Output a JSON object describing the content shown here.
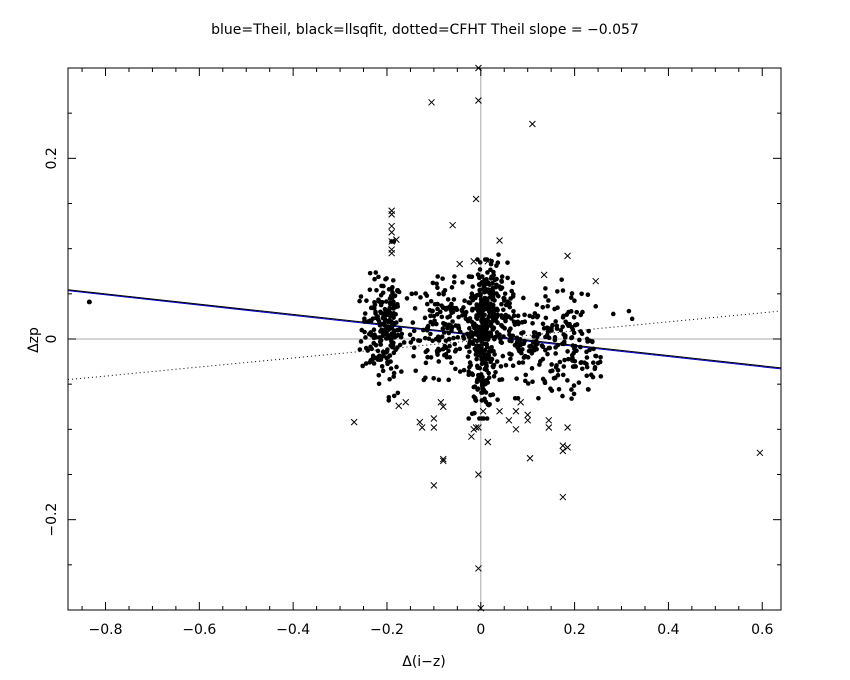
{
  "chart_data": {
    "type": "scatter",
    "title": "blue=Theil, black=llsqfit, dotted=CFHT   Theil slope = −0.057",
    "xlabel": "Δ(i−z)",
    "ylabel": "Δzp",
    "xlim": [
      -0.88,
      0.64
    ],
    "ylim": [
      -0.3,
      0.3
    ],
    "x_ticks": [
      -0.8,
      -0.6,
      -0.4,
      -0.2,
      0,
      0.2,
      0.4,
      0.6
    ],
    "x_tick_labels": [
      "−0.8",
      "−0.6",
      "−0.4",
      "−0.2",
      "0",
      "0.2",
      "0.4",
      "0.6"
    ],
    "y_ticks": [
      -0.2,
      0,
      0.2
    ],
    "y_tick_labels": [
      "−0.2",
      "0",
      "0.2"
    ],
    "grid": false,
    "zero_lines": true,
    "colors": {
      "points": "#000000",
      "theil": "#0000cc",
      "llsqfit": "#000000",
      "cfht": "#000000",
      "zero_line": "#aaaaaa"
    },
    "lines": [
      {
        "style": "solid",
        "color": "#0000cc",
        "x": [
          -0.88,
          0.64
        ],
        "y": [
          0.0535,
          -0.0331
        ]
      },
      {
        "style": "solid",
        "color": "#000000",
        "x": [
          -0.88,
          0.64
        ],
        "y": [
          0.0545,
          -0.032
        ]
      },
      {
        "style": "dotted",
        "color": "#000000",
        "x": [
          -0.88,
          0.64
        ],
        "y": [
          -0.045,
          0.031
        ]
      }
    ],
    "outliers": [
      [
        -0.27,
        -0.092
      ],
      [
        -0.19,
        0.142
      ],
      [
        -0.19,
        0.138
      ],
      [
        -0.19,
        0.125
      ],
      [
        -0.19,
        0.118
      ],
      [
        -0.19,
        0.108
      ],
      [
        -0.18,
        0.11
      ],
      [
        -0.19,
        0.099
      ],
      [
        -0.19,
        0.095
      ],
      [
        -0.175,
        -0.074
      ],
      [
        -0.16,
        -0.07
      ],
      [
        -0.13,
        -0.092
      ],
      [
        -0.125,
        -0.098
      ],
      [
        -0.105,
        0.262
      ],
      [
        -0.1,
        -0.088
      ],
      [
        -0.1,
        -0.098
      ],
      [
        -0.1,
        -0.162
      ],
      [
        -0.085,
        -0.07
      ],
      [
        -0.08,
        -0.075
      ],
      [
        -0.08,
        -0.133
      ],
      [
        -0.08,
        -0.135
      ],
      [
        -0.06,
        0.126
      ],
      [
        -0.045,
        0.083
      ],
      [
        -0.02,
        -0.108
      ],
      [
        -0.015,
        0.086
      ],
      [
        -0.015,
        -0.1
      ],
      [
        -0.01,
        0.155
      ],
      [
        -0.01,
        -0.098
      ],
      [
        -0.005,
        0.264
      ],
      [
        -0.005,
        0.3
      ],
      [
        -0.005,
        -0.098
      ],
      [
        -0.005,
        -0.15
      ],
      [
        -0.005,
        -0.254
      ],
      [
        0.0,
        -0.298
      ],
      [
        0.005,
        -0.08
      ],
      [
        0.015,
        0.086
      ],
      [
        0.015,
        -0.114
      ],
      [
        0.04,
        0.109
      ],
      [
        0.04,
        -0.08
      ],
      [
        0.06,
        -0.09
      ],
      [
        0.075,
        -0.08
      ],
      [
        0.075,
        -0.1
      ],
      [
        0.085,
        -0.07
      ],
      [
        0.1,
        -0.09
      ],
      [
        0.1,
        -0.084
      ],
      [
        0.105,
        -0.132
      ],
      [
        0.11,
        0.238
      ],
      [
        0.135,
        0.071
      ],
      [
        0.145,
        -0.098
      ],
      [
        0.145,
        -0.09
      ],
      [
        0.175,
        -0.118
      ],
      [
        0.175,
        -0.124
      ],
      [
        0.175,
        -0.175
      ],
      [
        0.185,
        0.092
      ],
      [
        0.185,
        -0.098
      ],
      [
        0.185,
        -0.12
      ],
      [
        0.245,
        0.064
      ],
      [
        0.595,
        -0.126
      ]
    ],
    "clusters": [
      {
        "cx": -0.835,
        "cy": 0.041,
        "sx": 0.0,
        "sy": 0.0,
        "n": 2
      },
      {
        "cx": -0.21,
        "cy": 0.012,
        "sx": 0.022,
        "sy": 0.028,
        "n": 170
      },
      {
        "cx": -0.19,
        "cy": 0.02,
        "sx": 0.006,
        "sy": 0.04,
        "n": 40
      },
      {
        "cx": -0.07,
        "cy": 0.012,
        "sx": 0.05,
        "sy": 0.026,
        "n": 200
      },
      {
        "cx": 0.005,
        "cy": 0.0,
        "sx": 0.014,
        "sy": 0.04,
        "n": 260
      },
      {
        "cx": 0.025,
        "cy": 0.045,
        "sx": 0.02,
        "sy": 0.022,
        "n": 90
      },
      {
        "cx": 0.1,
        "cy": -0.004,
        "sx": 0.045,
        "sy": 0.028,
        "n": 170
      },
      {
        "cx": 0.19,
        "cy": 0.0,
        "sx": 0.025,
        "sy": 0.03,
        "n": 70
      },
      {
        "cx": 0.235,
        "cy": -0.025,
        "sx": 0.012,
        "sy": 0.014,
        "n": 25
      },
      {
        "cx": 0.3,
        "cy": 0.03,
        "sx": 0.02,
        "sy": 0.005,
        "n": 3
      }
    ]
  }
}
